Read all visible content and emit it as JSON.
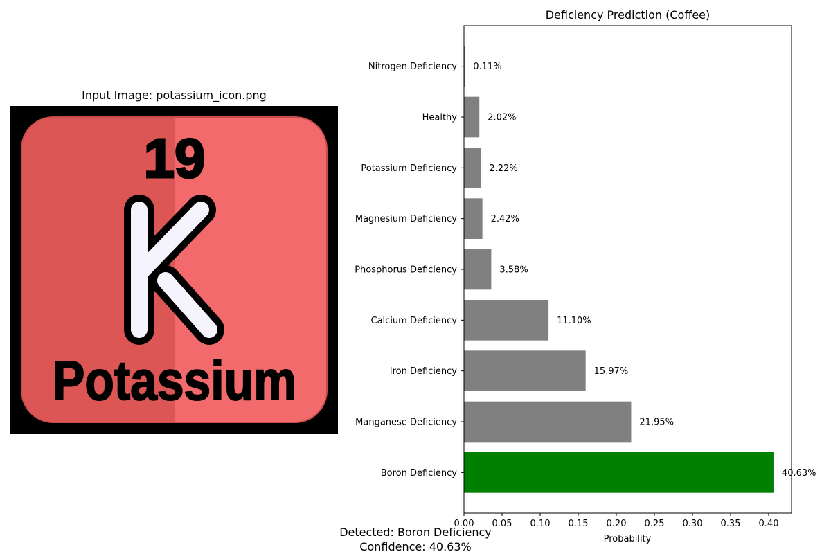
{
  "image_panel": {
    "title": "Input Image: potassium_icon.png",
    "icon": {
      "name": "potassium-element-icon",
      "atomic_number": "19",
      "symbol": "K",
      "element_name": "Potassium",
      "colors": {
        "frame": "#000000",
        "tile_left": "#dd5656",
        "tile_right": "#f26a6b",
        "symbol_fill": "#f5f3fb",
        "ink": "#000000"
      }
    }
  },
  "chart_data": {
    "type": "bar",
    "orientation": "horizontal",
    "title": "Deficiency Prediction (Coffee)",
    "xlabel": "Probability",
    "ylabel": "",
    "xlim": [
      0,
      0.43
    ],
    "xticks": [
      "0.00",
      "0.05",
      "0.10",
      "0.15",
      "0.20",
      "0.25",
      "0.30",
      "0.35",
      "0.40"
    ],
    "grid": false,
    "categories": [
      "Nitrogen Deficiency",
      "Healthy",
      "Potassium Deficiency",
      "Magnesium Deficiency",
      "Phosphorus Deficiency",
      "Calcium Deficiency",
      "Iron Deficiency",
      "Manganese Deficiency",
      "Boron Deficiency"
    ],
    "values": [
      0.0011,
      0.0202,
      0.0222,
      0.0242,
      0.0358,
      0.111,
      0.1597,
      0.2195,
      0.4063
    ],
    "value_labels": [
      "0.11%",
      "2.02%",
      "2.22%",
      "2.42%",
      "3.58%",
      "11.10%",
      "15.97%",
      "21.95%",
      "40.63%"
    ],
    "bar_colors": [
      "#808080",
      "#808080",
      "#808080",
      "#808080",
      "#808080",
      "#808080",
      "#808080",
      "#808080",
      "#008000"
    ],
    "highlight_category": "Boron Deficiency"
  },
  "result": {
    "detected": "Detected: Boron Deficiency",
    "confidence": "Confidence: 40.63%"
  }
}
